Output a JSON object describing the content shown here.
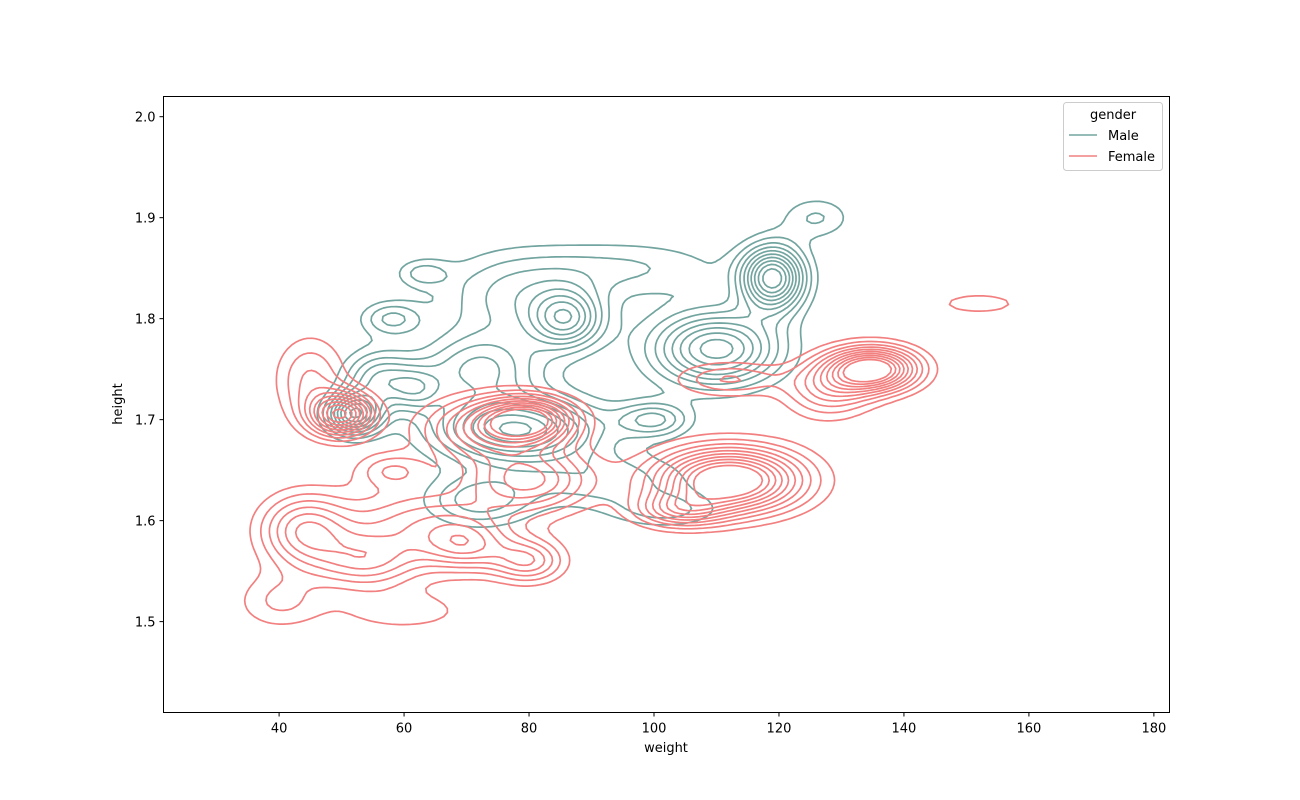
{
  "chart_data": {
    "type": "kde-contour",
    "title": "",
    "xlabel": "weight",
    "ylabel": "height",
    "xlim": [
      21.5,
      182.5
    ],
    "ylim": [
      1.41,
      2.02
    ],
    "xticks": [
      40,
      60,
      80,
      100,
      120,
      140,
      160,
      180
    ],
    "yticks": [
      1.5,
      1.6,
      1.7,
      1.8,
      1.9,
      2.0
    ],
    "xtick_labels": [
      "40",
      "60",
      "80",
      "100",
      "120",
      "140",
      "160",
      "180"
    ],
    "ytick_labels": [
      "1.5",
      "1.6",
      "1.7",
      "1.8",
      "1.9",
      "2.0"
    ],
    "grid": false,
    "legend": {
      "title": "gender",
      "placement": "top-right",
      "entries": [
        {
          "label": "Male",
          "color": "#73a5a0"
        },
        {
          "label": "Female",
          "color": "#f28080"
        }
      ]
    },
    "series": [
      {
        "name": "Male",
        "color": "#73a5a0",
        "density_peaks": [
          {
            "x": 52,
            "y": 1.705,
            "sx": 3.0,
            "sy": 0.014,
            "w": 0.9
          },
          {
            "x": 56,
            "y": 1.74,
            "sx": 4.0,
            "sy": 0.02,
            "w": 0.5
          },
          {
            "x": 58,
            "y": 1.8,
            "sx": 3.5,
            "sy": 0.012,
            "w": 0.35
          },
          {
            "x": 62,
            "y": 1.73,
            "sx": 3.0,
            "sy": 0.015,
            "w": 0.35
          },
          {
            "x": 78,
            "y": 1.69,
            "sx": 9.0,
            "sy": 0.022,
            "w": 0.95
          },
          {
            "x": 72,
            "y": 1.75,
            "sx": 7.0,
            "sy": 0.025,
            "w": 0.55
          },
          {
            "x": 86,
            "y": 1.8,
            "sx": 4.0,
            "sy": 0.02,
            "w": 0.7
          },
          {
            "x": 77,
            "y": 1.82,
            "sx": 8.0,
            "sy": 0.03,
            "w": 0.35
          },
          {
            "x": 100,
            "y": 1.7,
            "sx": 4.0,
            "sy": 0.012,
            "w": 0.45
          },
          {
            "x": 110,
            "y": 1.77,
            "sx": 7.0,
            "sy": 0.025,
            "w": 0.9
          },
          {
            "x": 119,
            "y": 1.84,
            "sx": 3.5,
            "sy": 0.022,
            "w": 1.1
          },
          {
            "x": 126,
            "y": 1.9,
            "sx": 4.0,
            "sy": 0.015,
            "w": 0.25
          },
          {
            "x": 72,
            "y": 1.62,
            "sx": 6.0,
            "sy": 0.018,
            "w": 0.4
          },
          {
            "x": 92,
            "y": 1.64,
            "sx": 10.0,
            "sy": 0.02,
            "w": 0.3
          },
          {
            "x": 102,
            "y": 1.61,
            "sx": 6.0,
            "sy": 0.012,
            "w": 0.25
          },
          {
            "x": 95,
            "y": 1.85,
            "sx": 12.0,
            "sy": 0.02,
            "w": 0.25
          },
          {
            "x": 63,
            "y": 1.845,
            "sx": 3.0,
            "sy": 0.01,
            "w": 0.25
          }
        ]
      },
      {
        "name": "Female",
        "color": "#f28080",
        "density_peaks": [
          {
            "x": 50,
            "y": 1.705,
            "sx": 3.5,
            "sy": 0.015,
            "w": 1.0
          },
          {
            "x": 45,
            "y": 1.74,
            "sx": 4.0,
            "sy": 0.03,
            "w": 0.35
          },
          {
            "x": 80,
            "y": 1.7,
            "sx": 5.0,
            "sy": 0.015,
            "w": 1.0
          },
          {
            "x": 73,
            "y": 1.69,
            "sx": 7.0,
            "sy": 0.022,
            "w": 0.6
          },
          {
            "x": 112,
            "y": 1.64,
            "sx": 8.0,
            "sy": 0.022,
            "w": 1.3
          },
          {
            "x": 104,
            "y": 1.61,
            "sx": 5.0,
            "sy": 0.012,
            "w": 0.5
          },
          {
            "x": 135,
            "y": 1.75,
            "sx": 5.0,
            "sy": 0.015,
            "w": 1.2
          },
          {
            "x": 128,
            "y": 1.73,
            "sx": 5.0,
            "sy": 0.02,
            "w": 0.45
          },
          {
            "x": 112,
            "y": 1.74,
            "sx": 6.0,
            "sy": 0.012,
            "w": 0.35
          },
          {
            "x": 152,
            "y": 1.815,
            "sx": 5.0,
            "sy": 0.008,
            "w": 0.22
          },
          {
            "x": 44,
            "y": 1.59,
            "sx": 5.0,
            "sy": 0.025,
            "w": 0.6
          },
          {
            "x": 54,
            "y": 1.56,
            "sx": 6.0,
            "sy": 0.02,
            "w": 0.5
          },
          {
            "x": 63,
            "y": 1.6,
            "sx": 9.0,
            "sy": 0.025,
            "w": 0.45
          },
          {
            "x": 80,
            "y": 1.64,
            "sx": 7.0,
            "sy": 0.022,
            "w": 0.65
          },
          {
            "x": 70,
            "y": 1.575,
            "sx": 5.0,
            "sy": 0.018,
            "w": 0.5
          },
          {
            "x": 80,
            "y": 1.56,
            "sx": 4.0,
            "sy": 0.015,
            "w": 0.5
          },
          {
            "x": 58,
            "y": 1.65,
            "sx": 4.0,
            "sy": 0.012,
            "w": 0.3
          },
          {
            "x": 40,
            "y": 1.52,
            "sx": 5.0,
            "sy": 0.02,
            "w": 0.25
          },
          {
            "x": 60,
            "y": 1.51,
            "sx": 8.0,
            "sy": 0.015,
            "w": 0.2
          }
        ]
      }
    ],
    "contour_levels": [
      0.14,
      0.24,
      0.34,
      0.44,
      0.54,
      0.64,
      0.74,
      0.84,
      0.94,
      1.04
    ]
  }
}
